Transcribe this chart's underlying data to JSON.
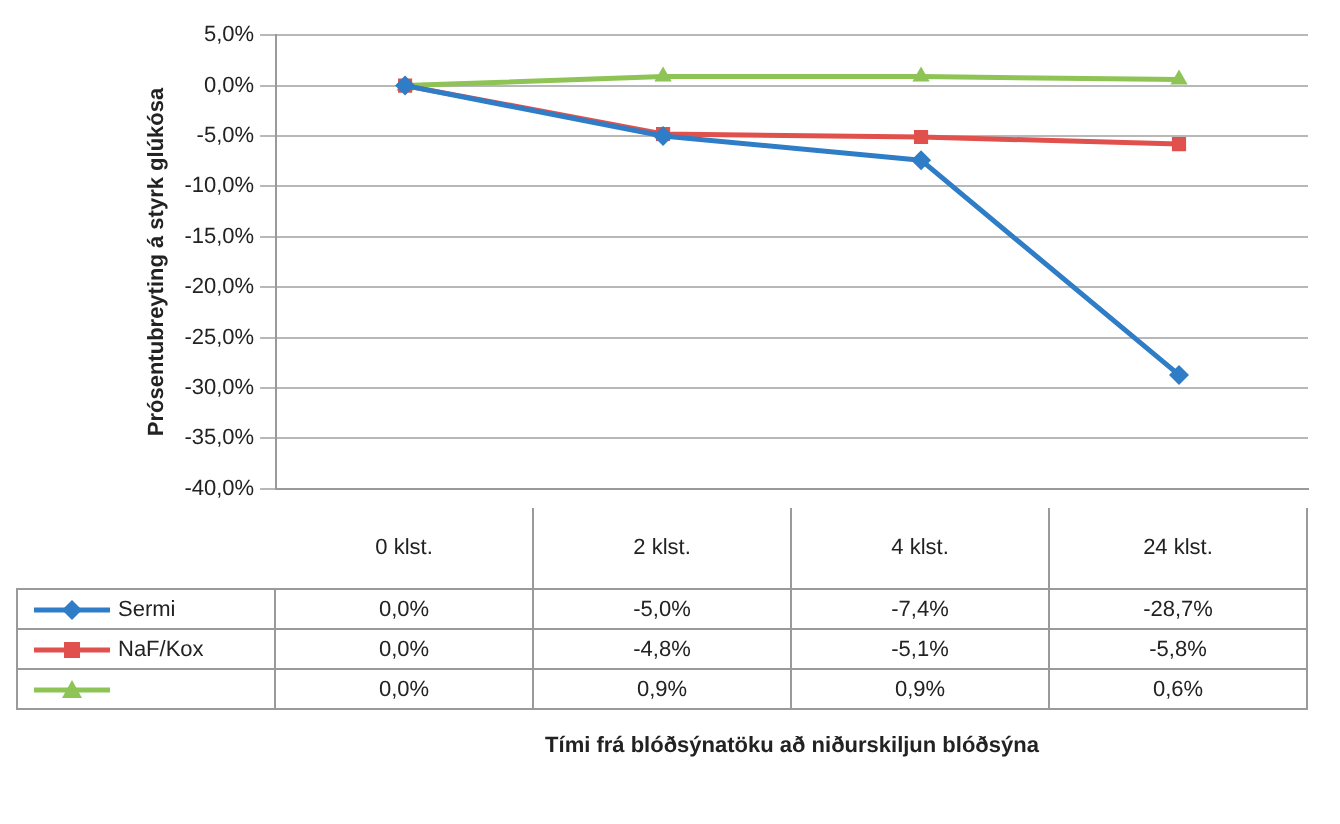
{
  "chart_data": {
    "type": "line",
    "ylabel": "Prósentubreyting á styrk glúkósa",
    "annotations": [
      "Tími frá blóðsýnatöku að niðurskiljun blóðsýna"
    ],
    "categories": [
      "0 klst.",
      "2 klst.",
      "4 klst.",
      "24 klst."
    ],
    "series": [
      {
        "name": "Sermi",
        "color": "#2e7dc6",
        "marker": "diamond",
        "values": [
          0.0,
          -5.0,
          -7.4,
          -28.7
        ],
        "value_labels": [
          "0,0%",
          "-5,0%",
          "-7,4%",
          "-28,7%"
        ]
      },
      {
        "name": "NaF/Kox",
        "color": "#e0504c",
        "marker": "square",
        "values": [
          0.0,
          -4.8,
          -5.1,
          -5.8
        ],
        "value_labels": [
          "0,0%",
          "-4,8%",
          "-5,1%",
          "-5,8%"
        ]
      },
      {
        "color": "#8dc455",
        "marker": "triangle",
        "values": [
          0.0,
          0.9,
          0.9,
          0.6
        ],
        "value_labels": [
          "0,0%",
          "0,9%",
          "0,9%",
          "0,6%"
        ]
      }
    ],
    "ylim": [
      -40,
      5
    ],
    "yticks": [
      {
        "value": 5,
        "label": "5,0%"
      },
      {
        "value": 0,
        "label": "0,0%"
      },
      {
        "value": -5,
        "label": "-5,0%"
      },
      {
        "value": -10,
        "label": "-10,0%"
      },
      {
        "value": -15,
        "label": "-15,0%"
      },
      {
        "value": -20,
        "label": "-20,0%"
      },
      {
        "value": -25,
        "label": "-25,0%"
      },
      {
        "value": -30,
        "label": "-30,0%"
      },
      {
        "value": -35,
        "label": "-35,0%"
      },
      {
        "value": -40,
        "label": "-40,0%"
      }
    ],
    "grid": "y",
    "legend": "bottom",
    "line_style": "solid"
  }
}
